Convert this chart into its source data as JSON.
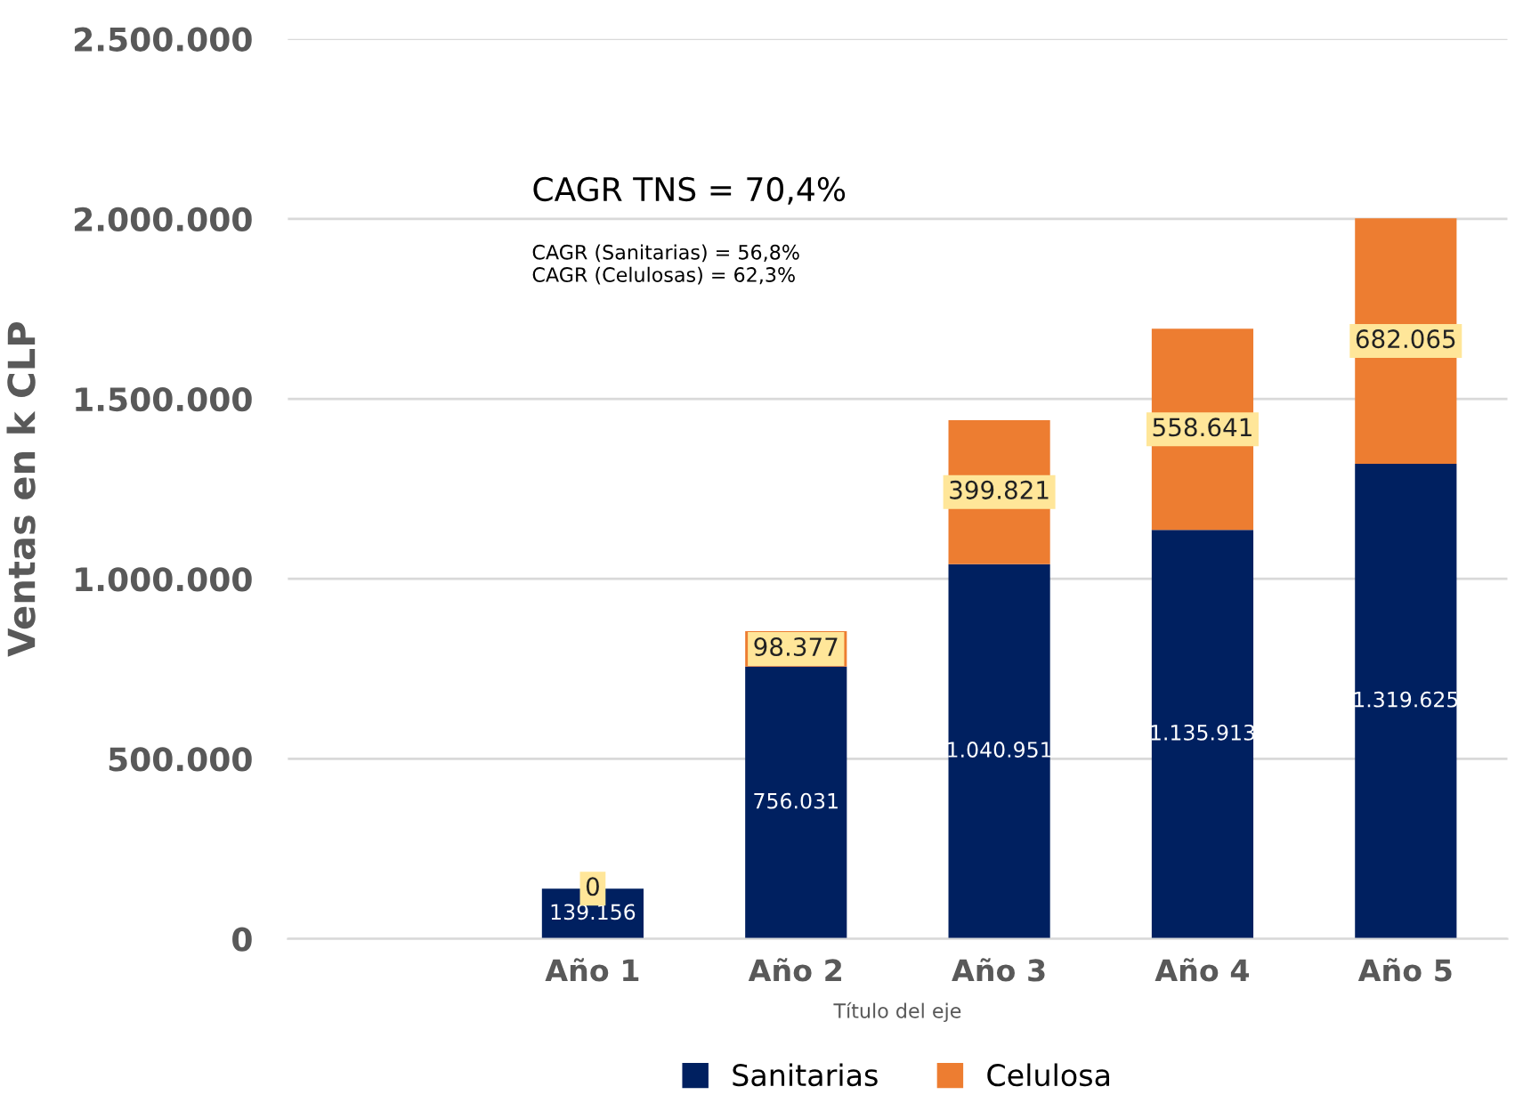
{
  "chart_data": {
    "type": "bar",
    "stacked": true,
    "xlabel": "Título del eje",
    "ylabel": "Ventas en k CLP",
    "categories": [
      null,
      "Año 1",
      "Año 2",
      "Año 3",
      "Año 4",
      "Año 5"
    ],
    "series": [
      {
        "name": "Sanitarias",
        "color": "#002060",
        "values": [
          null,
          139156,
          756031,
          1040951,
          1135913,
          1319625
        ],
        "value_labels": [
          null,
          "139.156",
          "756.031",
          "1.040.951",
          "1.135.913",
          "1.319.625"
        ]
      },
      {
        "name": "Celulosa",
        "color": "#ed7d31",
        "values": [
          null,
          0,
          98377,
          399821,
          558641,
          682065
        ],
        "value_labels": [
          null,
          "0",
          "98.377",
          "399.821",
          "558.641",
          "682.065"
        ]
      }
    ],
    "ylim": [
      0,
      2500000
    ],
    "yticks": [
      {
        "value": 0,
        "label": "0"
      },
      {
        "value": 500000,
        "label": "500.000"
      },
      {
        "value": 1000000,
        "label": "1.000.000"
      },
      {
        "value": 1500000,
        "label": "1.500.000"
      },
      {
        "value": 2000000,
        "label": "2.000.000"
      },
      {
        "value": 2500000,
        "label": "2.500.000"
      }
    ],
    "grid": "y",
    "legend": "bottom",
    "annotations": [
      "CAGR TNS = 70,4%",
      "CAGR (Sanitarias) = 56,8%",
      "CAGR (Celulosas) = 62,3%"
    ]
  }
}
